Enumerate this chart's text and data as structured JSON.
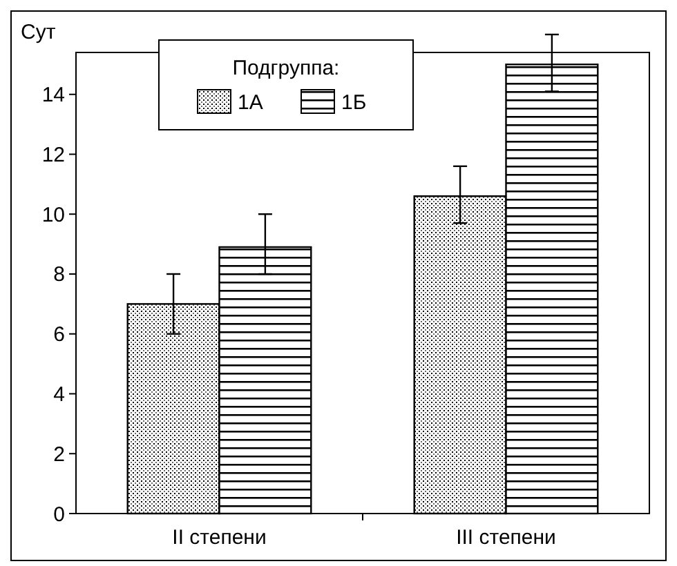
{
  "chart_data": {
    "type": "bar",
    "ylabel": "Сут",
    "legend_title": "Подгруппа:",
    "legend": "top",
    "grid": false,
    "categories": [
      "II степени",
      "III степени"
    ],
    "series": [
      {
        "name": "1А",
        "color": "#000000",
        "values": [
          7.0,
          10.6
        ],
        "errors": [
          [
            6,
            8
          ],
          [
            9.7,
            11.6
          ]
        ]
      },
      {
        "name": "1Б",
        "color": "#000000",
        "values": [
          8.9,
          15.0
        ],
        "errors": [
          [
            8,
            10
          ],
          [
            14.1,
            16
          ]
        ]
      }
    ],
    "ylim": [
      0,
      15.4
    ],
    "yticks": [
      0,
      2,
      4,
      6,
      8,
      10,
      12,
      14
    ]
  }
}
